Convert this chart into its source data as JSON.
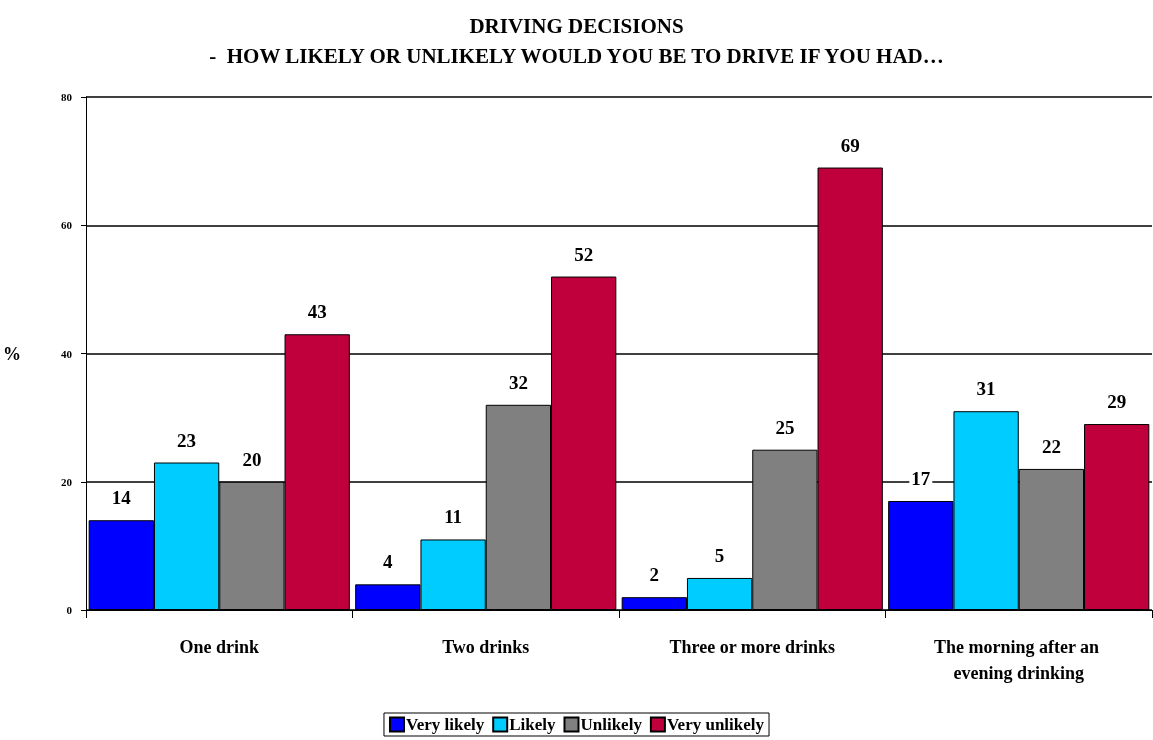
{
  "chart_data": {
    "type": "bar",
    "title": "DRIVING DECISIONS\n-  HOW LIKELY OR UNLIKELY WOULD YOU BE TO DRIVE IF YOU HAD…",
    "ylabel": "%",
    "categories": [
      "One drink",
      "Two drinks",
      "Three or more drinks",
      "The morning after an evening drinking"
    ],
    "series": [
      {
        "name": "Very likely",
        "color": "#0000ff",
        "values": [
          14,
          4,
          2,
          17
        ]
      },
      {
        "name": "Likely",
        "color": "#00ccff",
        "values": [
          23,
          11,
          5,
          31
        ]
      },
      {
        "name": "Unlikely",
        "color": "#808080",
        "values": [
          20,
          32,
          25,
          22
        ]
      },
      {
        "name": "Very unlikely",
        "color": "#c0003c",
        "values": [
          43,
          52,
          69,
          29
        ]
      }
    ],
    "ylim": [
      0,
      80
    ],
    "yticks": [
      0,
      20,
      40,
      60,
      80
    ],
    "grid": "y",
    "legend": "bottom",
    "data_labels": true
  }
}
